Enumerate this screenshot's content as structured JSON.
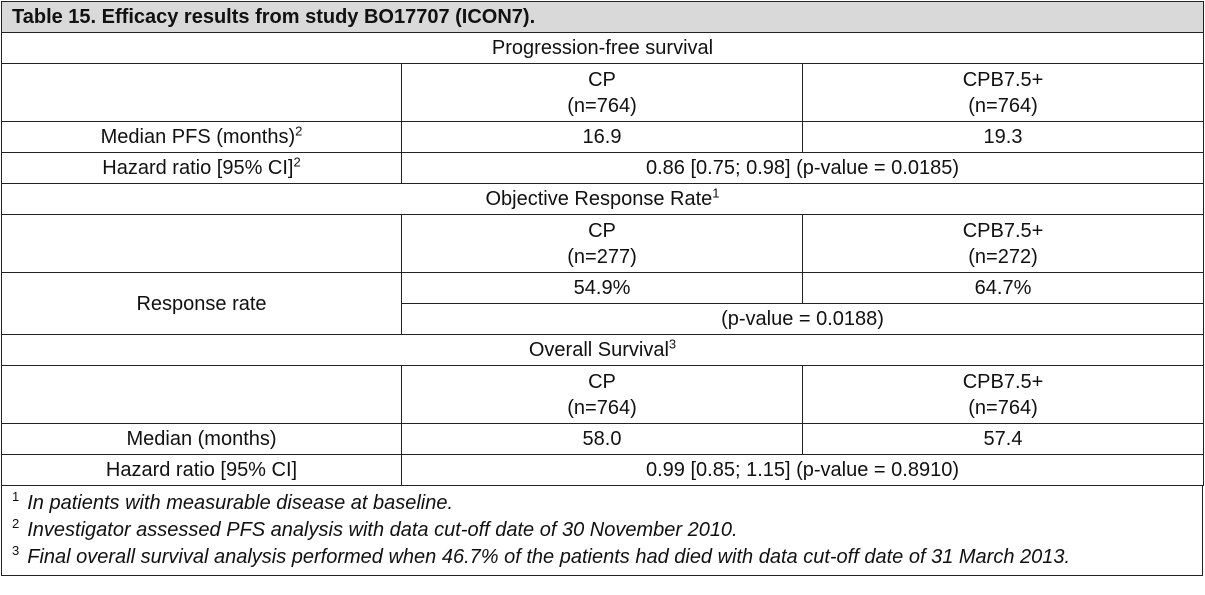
{
  "title": "Table 15. Efficacy results from study BO17707 (ICON7).",
  "pfs": {
    "section": "Progression-free survival",
    "col1": {
      "name": "CP",
      "n": "(n=764)"
    },
    "col2": {
      "name": "CPB7.5+",
      "n": "(n=764)"
    },
    "median_label": "Median PFS (months)",
    "median_sup": "2",
    "median_cp": "16.9",
    "median_cpb": "19.3",
    "hr_label": "Hazard ratio [95% CI]",
    "hr_sup": "2",
    "hr_value": "0.86 [0.75; 0.98] (p-value = 0.0185)"
  },
  "orr": {
    "section": "Objective Response Rate",
    "section_sup": "1",
    "col1": {
      "name": "CP",
      "n": "(n=277)"
    },
    "col2": {
      "name": "CPB7.5+",
      "n": "(n=272)"
    },
    "rate_label": "Response rate",
    "rate_cp": "54.9%",
    "rate_cpb": "64.7%",
    "p_value": "(p-value = 0.0188)"
  },
  "os": {
    "section": "Overall Survival",
    "section_sup": "3",
    "col1": {
      "name": "CP",
      "n": "(n=764)"
    },
    "col2": {
      "name": "CPB7.5+",
      "n": "(n=764)"
    },
    "median_label": "Median (months)",
    "median_cp": "58.0",
    "median_cpb": "57.4",
    "hr_label": "Hazard ratio [95% CI]",
    "hr_value": "0.99 [0.85; 1.15] (p-value = 0.8910)"
  },
  "footnotes": [
    {
      "num": "1",
      "text": "In patients with measurable disease at baseline."
    },
    {
      "num": "2",
      "text": "Investigator assessed PFS analysis with data cut-off date of 30 November 2010."
    },
    {
      "num": "3",
      "text": "Final overall survival analysis performed when 46.7% of the patients had died with data cut-off date of 31 March 2013."
    }
  ]
}
